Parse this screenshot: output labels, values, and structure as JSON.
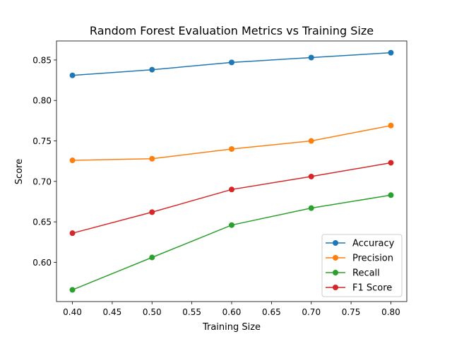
{
  "chart_data": {
    "type": "line",
    "title": "Random Forest Evaluation Metrics vs Training Size",
    "xlabel": "Training Size",
    "ylabel": "Score",
    "x": [
      0.4,
      0.5,
      0.6,
      0.7,
      0.8
    ],
    "x_ticks": [
      "0.40",
      "0.45",
      "0.50",
      "0.55",
      "0.60",
      "0.65",
      "0.70",
      "0.75",
      "0.80"
    ],
    "y_ticks": [
      "0.60",
      "0.65",
      "0.70",
      "0.75",
      "0.80",
      "0.85"
    ],
    "xlim": [
      0.38,
      0.82
    ],
    "ylim": [
      0.5515,
      0.8735
    ],
    "grid": false,
    "legend_position": "lower right",
    "series": [
      {
        "name": "Accuracy",
        "color": "#1f77b4",
        "values": [
          0.831,
          0.838,
          0.847,
          0.853,
          0.859
        ]
      },
      {
        "name": "Precision",
        "color": "#ff7f0e",
        "values": [
          0.726,
          0.728,
          0.74,
          0.75,
          0.769
        ]
      },
      {
        "name": "Recall",
        "color": "#2ca02c",
        "values": [
          0.566,
          0.606,
          0.646,
          0.667,
          0.683
        ]
      },
      {
        "name": "F1 Score",
        "color": "#d62728",
        "values": [
          0.636,
          0.662,
          0.69,
          0.706,
          0.723
        ]
      }
    ]
  }
}
